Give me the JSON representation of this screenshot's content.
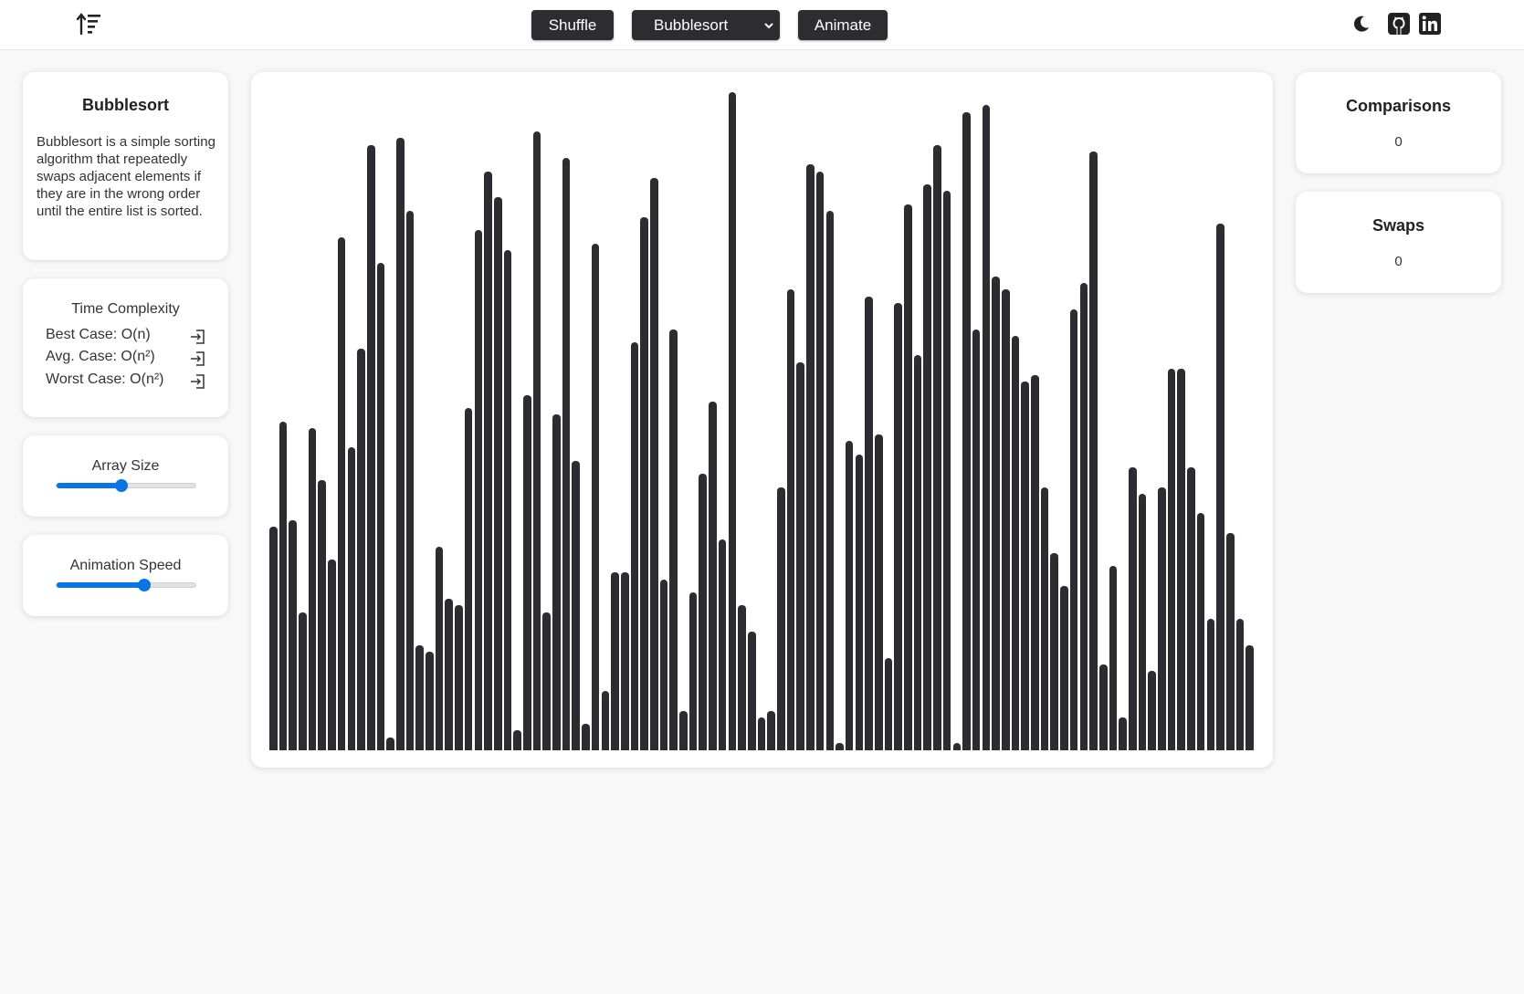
{
  "header": {
    "logo_icon": "sort-ascending-icon",
    "shuffle_label": "Shuffle",
    "algorithm_selected": "Bubblesort",
    "animate_label": "Animate",
    "theme_icon": "moon-icon",
    "github_icon": "github-icon",
    "linkedin_icon": "linkedin-icon"
  },
  "algorithm": {
    "title": "Bubblesort",
    "description": "Bubblesort is a simple sorting algorithm that repeatedly swaps adjacent elements if they are in the wrong order until the entire list is sorted."
  },
  "complexity": {
    "title": "Time Complexity",
    "rows": [
      {
        "label": "Best Case: O(n)",
        "icon": "enter-icon"
      },
      {
        "label": "Avg. Case: O(n²)",
        "icon": "enter-icon"
      },
      {
        "label": "Worst Case: O(n²)",
        "icon": "enter-icon"
      }
    ]
  },
  "controls": {
    "array_size_label": "Array Size",
    "array_size_fraction": 0.47,
    "speed_label": "Animation Speed",
    "speed_fraction": 0.63,
    "accent_color": "#0a74e6"
  },
  "stats": {
    "comparisons_label": "Comparisons",
    "comparisons_value": "0",
    "swaps_label": "Swaps",
    "swaps_value": "0"
  },
  "array": {
    "bar_color": "#2d2d31",
    "max_value": 100,
    "values": [
      34,
      50,
      35,
      21,
      49,
      41,
      29,
      78,
      46,
      61,
      92,
      74,
      2,
      93,
      82,
      16,
      15,
      31,
      23,
      22,
      52,
      79,
      88,
      84,
      76,
      3,
      54,
      94,
      21,
      51,
      90,
      44,
      4,
      77,
      9,
      27,
      27,
      62,
      81,
      87,
      26,
      64,
      6,
      24,
      42,
      53,
      32,
      100,
      22,
      18,
      5,
      6,
      40,
      70,
      59,
      89,
      88,
      82,
      1,
      47,
      45,
      69,
      48,
      14,
      68,
      83,
      60,
      86,
      92,
      85,
      1,
      97,
      64,
      98,
      72,
      70,
      63,
      56,
      57,
      40,
      30,
      25,
      67,
      71,
      91,
      13,
      28,
      5,
      43,
      39,
      12,
      40,
      58,
      58,
      43,
      36,
      20,
      80,
      33,
      20,
      16
    ]
  }
}
